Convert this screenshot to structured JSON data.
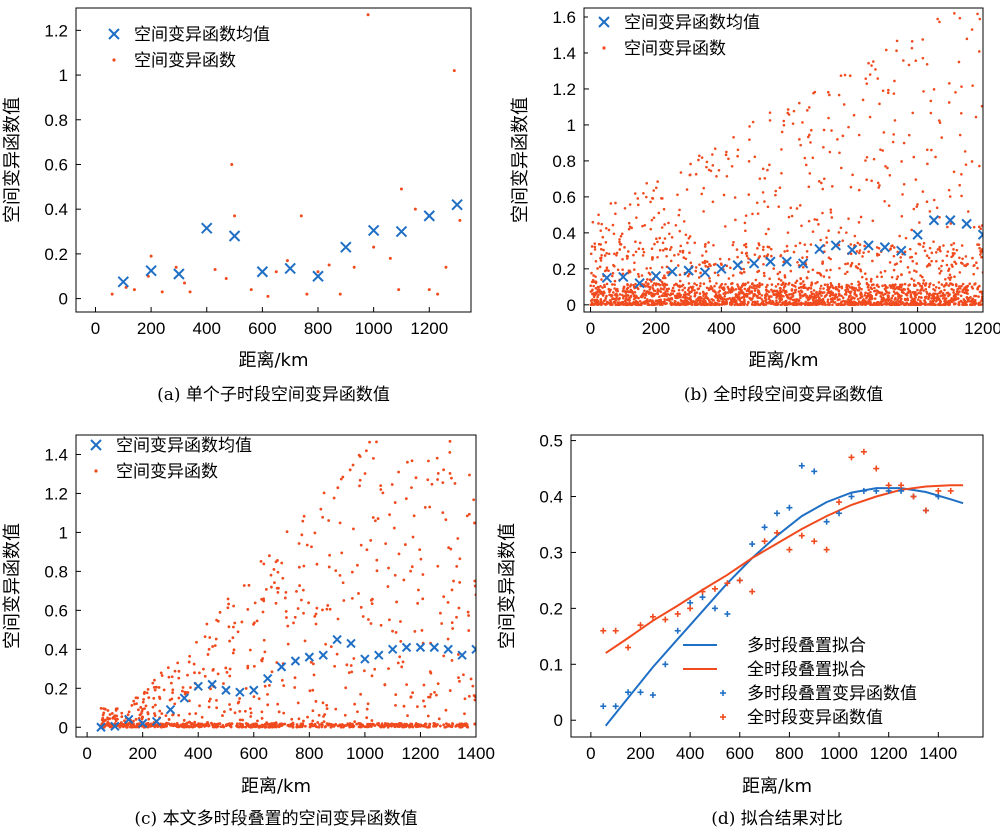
{
  "colors": {
    "mean": "#1f6fc5",
    "points": "#f04a1e",
    "fit_multi": "#1f6fc5",
    "fit_full": "#f04a1e"
  },
  "chart_data": [
    {
      "id": "a",
      "type": "scatter",
      "caption": "(a) 单个子时段空间变异函数值",
      "xlabel": "距离/km",
      "ylabel": "空间变异函数值",
      "xlim": [
        -70,
        1350
      ],
      "ylim": [
        -0.06,
        1.3
      ],
      "xticks": [
        0,
        200,
        400,
        600,
        800,
        1000,
        1200
      ],
      "yticks": [
        0,
        0.2,
        0.4,
        0.6,
        0.8,
        1.0,
        1.2
      ],
      "legend": [
        "空间变异函数均值",
        "空间变异函数"
      ],
      "mean_series": {
        "name": "空间变异函数均值",
        "x": [
          100,
          200,
          300,
          400,
          500,
          600,
          700,
          800,
          900,
          1000,
          1100,
          1200,
          1300
        ],
        "y": [
          0.075,
          0.125,
          0.11,
          0.315,
          0.28,
          0.12,
          0.135,
          0.1,
          0.23,
          0.305,
          0.3,
          0.37,
          0.42
        ]
      },
      "points": {
        "name": "空间变异函数",
        "x": [
          60,
          110,
          140,
          190,
          200,
          240,
          290,
          320,
          340,
          430,
          470,
          490,
          500,
          560,
          620,
          650,
          690,
          740,
          760,
          800,
          840,
          880,
          930,
          980,
          1000,
          1060,
          1090,
          1100,
          1150,
          1200,
          1230,
          1260,
          1290,
          1310
        ],
        "y": [
          0.02,
          0.05,
          0.04,
          0.1,
          0.19,
          0.03,
          0.14,
          0.07,
          0.03,
          0.13,
          0.09,
          0.6,
          0.37,
          0.04,
          0.01,
          0.12,
          0.17,
          0.37,
          0.02,
          0.12,
          0.15,
          0.02,
          0.14,
          1.27,
          0.23,
          0.18,
          0.04,
          0.49,
          0.4,
          0.04,
          0.02,
          0.14,
          1.02,
          0.35
        ]
      }
    },
    {
      "id": "b",
      "type": "scatter",
      "caption": "(b) 全时段空间变异函数值",
      "xlabel": "距离/km",
      "ylabel": "空间变异函数值",
      "xlim": [
        -20,
        1200
      ],
      "ylim": [
        -0.04,
        1.65
      ],
      "xticks": [
        0,
        200,
        400,
        600,
        800,
        1000,
        1200
      ],
      "yticks": [
        0,
        0.2,
        0.4,
        0.6,
        0.8,
        1.0,
        1.2,
        1.4,
        1.6
      ],
      "legend": [
        "空间变异函数均值",
        "空间变异函数"
      ],
      "mean_series": {
        "name": "空间变异函数均值",
        "x": [
          50,
          100,
          150,
          200,
          250,
          300,
          350,
          400,
          450,
          500,
          550,
          600,
          650,
          700,
          750,
          800,
          850,
          900,
          950,
          1000,
          1050,
          1100,
          1150,
          1200
        ],
        "y": [
          0.15,
          0.155,
          0.12,
          0.16,
          0.185,
          0.19,
          0.18,
          0.2,
          0.22,
          0.23,
          0.24,
          0.24,
          0.23,
          0.31,
          0.33,
          0.305,
          0.33,
          0.32,
          0.3,
          0.39,
          0.47,
          0.47,
          0.45,
          0.39
        ]
      },
      "points": {
        "name": "空间变异函数",
        "generated": "dense cloud, ~2600 points, distance 0-1200 km, values 0-1.65, concentrated below 0.2"
      }
    },
    {
      "id": "c",
      "type": "scatter",
      "caption": "(c) 本文多时段叠置的空间变异函数值",
      "xlabel": "距离/km",
      "ylabel": "空间变异函数值",
      "xlim": [
        -40,
        1400
      ],
      "ylim": [
        -0.05,
        1.5
      ],
      "xticks": [
        0,
        200,
        400,
        600,
        800,
        1000,
        1200,
        1400
      ],
      "yticks": [
        0,
        0.2,
        0.4,
        0.6,
        0.8,
        1.0,
        1.2,
        1.4
      ],
      "legend": [
        "空间变异函数均值",
        "空间变异函数"
      ],
      "mean_series": {
        "name": "空间变异函数均值",
        "x": [
          50,
          100,
          150,
          200,
          250,
          300,
          350,
          400,
          450,
          500,
          550,
          600,
          650,
          700,
          750,
          800,
          850,
          900,
          950,
          1000,
          1050,
          1100,
          1150,
          1200,
          1250,
          1300,
          1350,
          1400
        ],
        "y": [
          0.0,
          0.005,
          0.04,
          0.02,
          0.03,
          0.09,
          0.15,
          0.21,
          0.22,
          0.19,
          0.18,
          0.19,
          0.25,
          0.31,
          0.34,
          0.36,
          0.37,
          0.45,
          0.43,
          0.35,
          0.37,
          0.4,
          0.41,
          0.41,
          0.41,
          0.4,
          0.37,
          0.4
        ]
      },
      "points": {
        "name": "空间变异函数",
        "generated": "~1100 points, distance 50-1400 km, values 0-1.48, many near 0"
      }
    },
    {
      "id": "d",
      "type": "line+scatter",
      "caption": "(d) 拟合结果对比",
      "xlabel": "距离/km",
      "ylabel": "空间变异函数值",
      "xlim": [
        -80,
        1580
      ],
      "ylim": [
        -0.03,
        0.51
      ],
      "xticks": [
        0,
        200,
        400,
        600,
        800,
        1000,
        1200,
        1400
      ],
      "yticks": [
        0,
        0.1,
        0.2,
        0.3,
        0.4,
        0.5
      ],
      "legend": [
        "多时段叠置拟合",
        "全时段叠置拟合",
        "多时段叠置变异函数值",
        "全时段变异函数值"
      ],
      "fit_multi": {
        "name": "多时段叠置拟合",
        "x": [
          60,
          150,
          250,
          350,
          450,
          550,
          650,
          750,
          850,
          950,
          1050,
          1150,
          1250,
          1350,
          1450,
          1500
        ],
        "y": [
          -0.01,
          0.04,
          0.095,
          0.145,
          0.195,
          0.245,
          0.29,
          0.33,
          0.365,
          0.39,
          0.407,
          0.415,
          0.415,
          0.408,
          0.395,
          0.388
        ]
      },
      "fit_full": {
        "name": "全时段叠置拟合",
        "x": [
          60,
          150,
          250,
          350,
          450,
          550,
          650,
          750,
          850,
          950,
          1050,
          1150,
          1250,
          1350,
          1450,
          1500
        ],
        "y": [
          0.12,
          0.147,
          0.178,
          0.205,
          0.233,
          0.26,
          0.29,
          0.316,
          0.342,
          0.365,
          0.385,
          0.4,
          0.412,
          0.418,
          0.42,
          0.42
        ]
      },
      "points_multi": {
        "name": "多时段叠置变异函数值",
        "x": [
          50,
          100,
          150,
          200,
          250,
          300,
          350,
          400,
          450,
          500,
          550,
          600,
          650,
          700,
          750,
          800,
          850,
          900,
          950,
          1000,
          1050,
          1100,
          1150,
          1200,
          1250,
          1300,
          1350,
          1400
        ],
        "y": [
          0.025,
          0.025,
          0.05,
          0.05,
          0.045,
          0.1,
          0.16,
          0.21,
          0.22,
          0.2,
          0.19,
          0.25,
          0.315,
          0.345,
          0.37,
          0.38,
          0.455,
          0.445,
          0.355,
          0.37,
          0.4,
          0.41,
          0.41,
          0.41,
          0.41,
          0.4,
          0.375,
          0.4
        ]
      },
      "points_full": {
        "name": "全时段变异函数值",
        "x": [
          50,
          100,
          150,
          200,
          250,
          300,
          350,
          400,
          450,
          500,
          550,
          600,
          650,
          700,
          750,
          800,
          850,
          900,
          950,
          1000,
          1050,
          1100,
          1150,
          1200,
          1250,
          1300,
          1350,
          1400,
          1450
        ],
        "y": [
          0.16,
          0.16,
          0.13,
          0.17,
          0.185,
          0.18,
          0.19,
          0.2,
          0.23,
          0.235,
          0.245,
          0.25,
          0.23,
          0.32,
          0.335,
          0.305,
          0.33,
          0.32,
          0.305,
          0.39,
          0.47,
          0.48,
          0.45,
          0.42,
          0.42,
          0.4,
          0.375,
          0.41,
          0.41
        ]
      }
    }
  ]
}
